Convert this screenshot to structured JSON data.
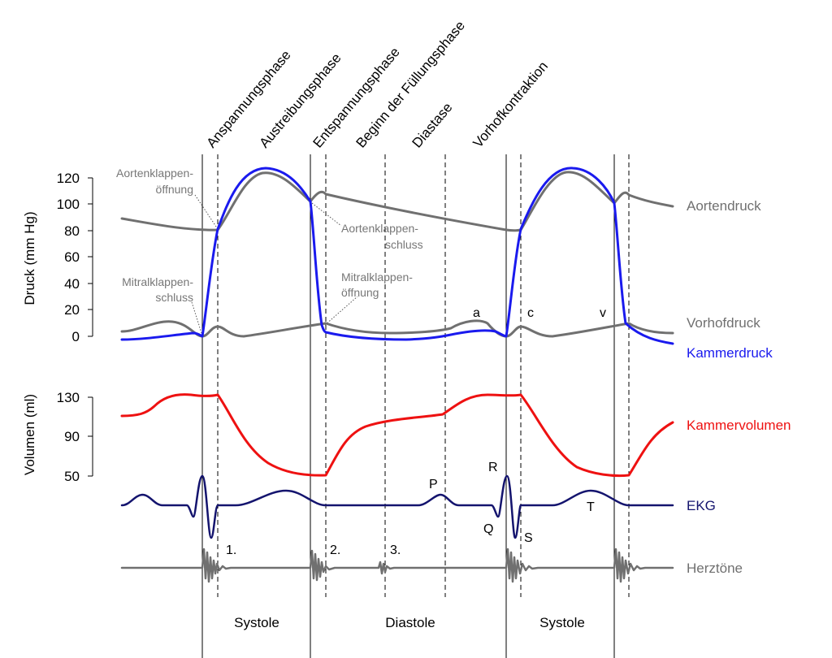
{
  "phases": [
    "Anspannungsphase",
    "Austreibungsphase",
    "Entspannungsphase",
    "Beginn der Füllungsphase",
    "Diastase",
    "Vorhofkontraktion"
  ],
  "pressure_axis": {
    "title": "Druck (mm Hg)",
    "ticks": [
      "120",
      "100",
      "80",
      "60",
      "40",
      "20",
      "0"
    ]
  },
  "volume_axis": {
    "title": "Volumen (ml)",
    "ticks": [
      "130",
      "90",
      "50"
    ]
  },
  "annotations": {
    "aortic_open_1": "Aortenklappen-",
    "aortic_open_2": "öffnung",
    "aortic_close_1": "Aortenklappen-",
    "aortic_close_2": "schluss",
    "mitral_close_1": "Mitralklappen-",
    "mitral_close_2": "schluss",
    "mitral_open_1": "Mitralklappen-",
    "mitral_open_2": "öffnung"
  },
  "wave_marks": {
    "a": "a",
    "c": "c",
    "v": "v",
    "P": "P",
    "Q": "Q",
    "R": "R",
    "S": "S",
    "T": "T"
  },
  "heart_sounds": [
    "1.",
    "2.",
    "3."
  ],
  "curve_labels": {
    "aortic": "Aortendruck",
    "atrial": "Vorhofdruck",
    "ventricular": "Kammerdruck",
    "volume": "Kammervolumen",
    "ecg": "EKG",
    "sounds": "Herztöne"
  },
  "periods": [
    "Systole",
    "Diastole",
    "Systole"
  ],
  "colors": {
    "aortic": "#707070",
    "atrial": "#707070",
    "ventricular": "#1a1aee",
    "volume": "#ee1111",
    "ecg": "#14146e",
    "sounds": "#707070",
    "annotation": "#777777"
  }
}
